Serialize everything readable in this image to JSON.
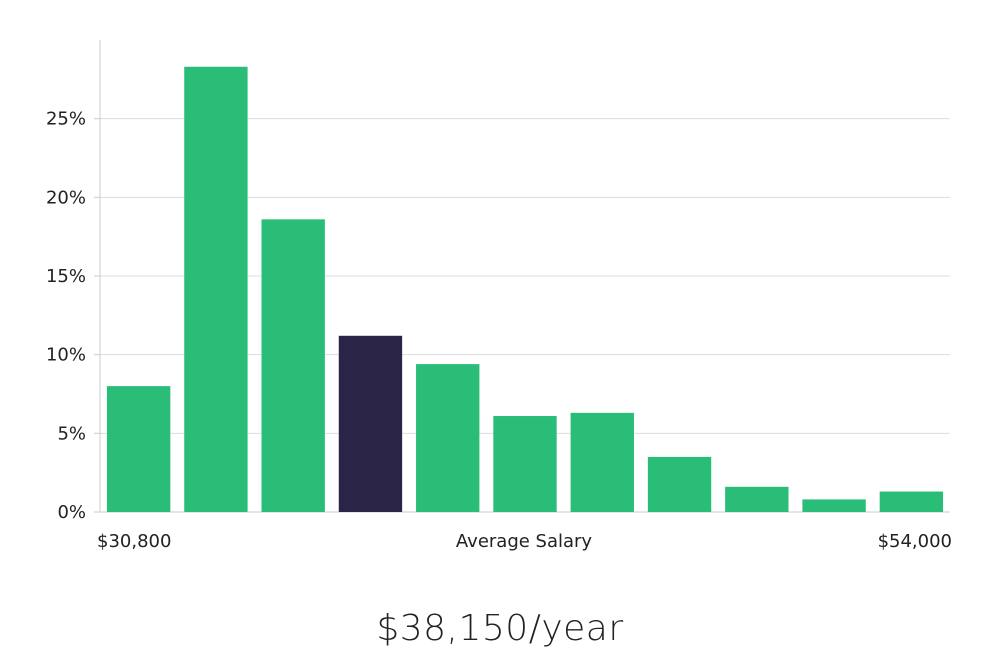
{
  "chart_data": {
    "type": "bar",
    "values": [
      8.0,
      28.3,
      18.6,
      11.2,
      9.4,
      6.1,
      6.3,
      3.5,
      1.6,
      0.8,
      1.3
    ],
    "highlight_index": 3,
    "y_ticks": [
      0,
      5,
      10,
      15,
      20,
      25
    ],
    "y_tick_suffix": "%",
    "ylim": [
      0,
      30
    ],
    "grid": true,
    "colors": {
      "bar": "#2abd78",
      "highlight": "#2a2547",
      "grid": "#dddddd",
      "axis": "#cccccc"
    },
    "x_labels": {
      "left": "$30,800",
      "center": "Average Salary",
      "right": "$54,000"
    }
  },
  "salary": {
    "display": "$38,150/year"
  }
}
